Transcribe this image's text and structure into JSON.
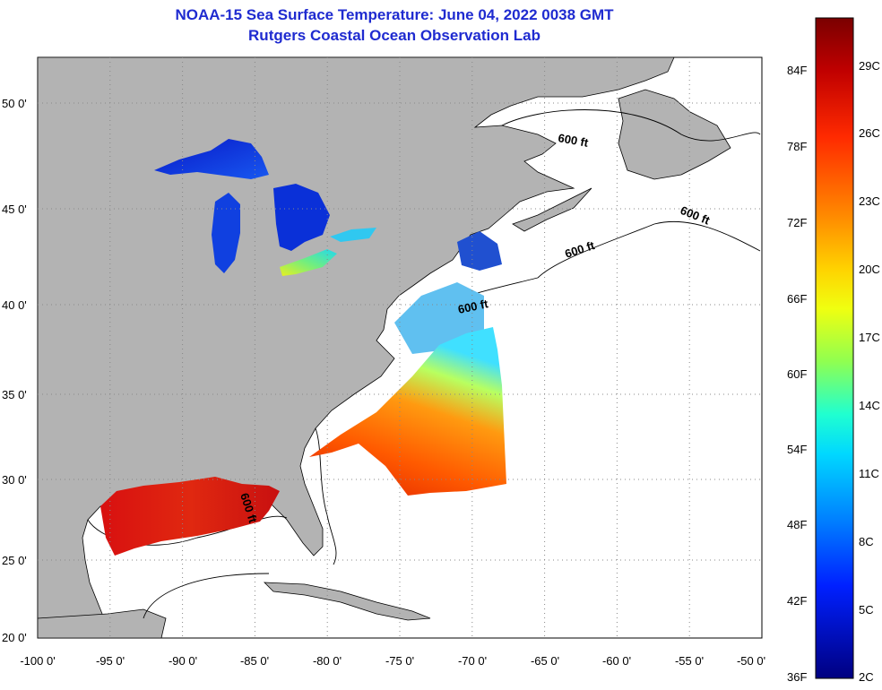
{
  "title": {
    "line1": "NOAA-15 Sea Surface Temperature:  June 04, 2022 0038 GMT",
    "line2": "Rutgers Coastal Ocean Observation Lab"
  },
  "axes": {
    "lon_labels": [
      "-100 0'",
      "-95 0'",
      "-90 0'",
      "-85 0'",
      "-80 0'",
      "-75 0'",
      "-70 0'",
      "-65 0'",
      "-60 0'",
      "-55 0'",
      "-50 0'"
    ],
    "lat_labels": [
      "20 0'",
      "25 0'",
      "30 0'",
      "35 0'",
      "40 0'",
      "45 0'",
      "50 0'"
    ],
    "lon_range": [
      -100,
      -50
    ],
    "lat_range": [
      20,
      52.5
    ]
  },
  "contour_labels": [
    "600 ft",
    "600 ft",
    "600 ft",
    "600 ft",
    "600 ft"
  ],
  "colorbar": {
    "fahrenheit": [
      "84F",
      "78F",
      "72F",
      "66F",
      "60F",
      "54F",
      "48F",
      "42F",
      "36F"
    ],
    "celsius": [
      "29C",
      "26C",
      "23C",
      "20C",
      "17C",
      "14C",
      "11C",
      "8C",
      "5C",
      "2C"
    ]
  },
  "colors": {
    "land": "#b3b3b3",
    "ocean": "#ffffff",
    "title": "#1f2bd0",
    "grid": "#888888"
  }
}
